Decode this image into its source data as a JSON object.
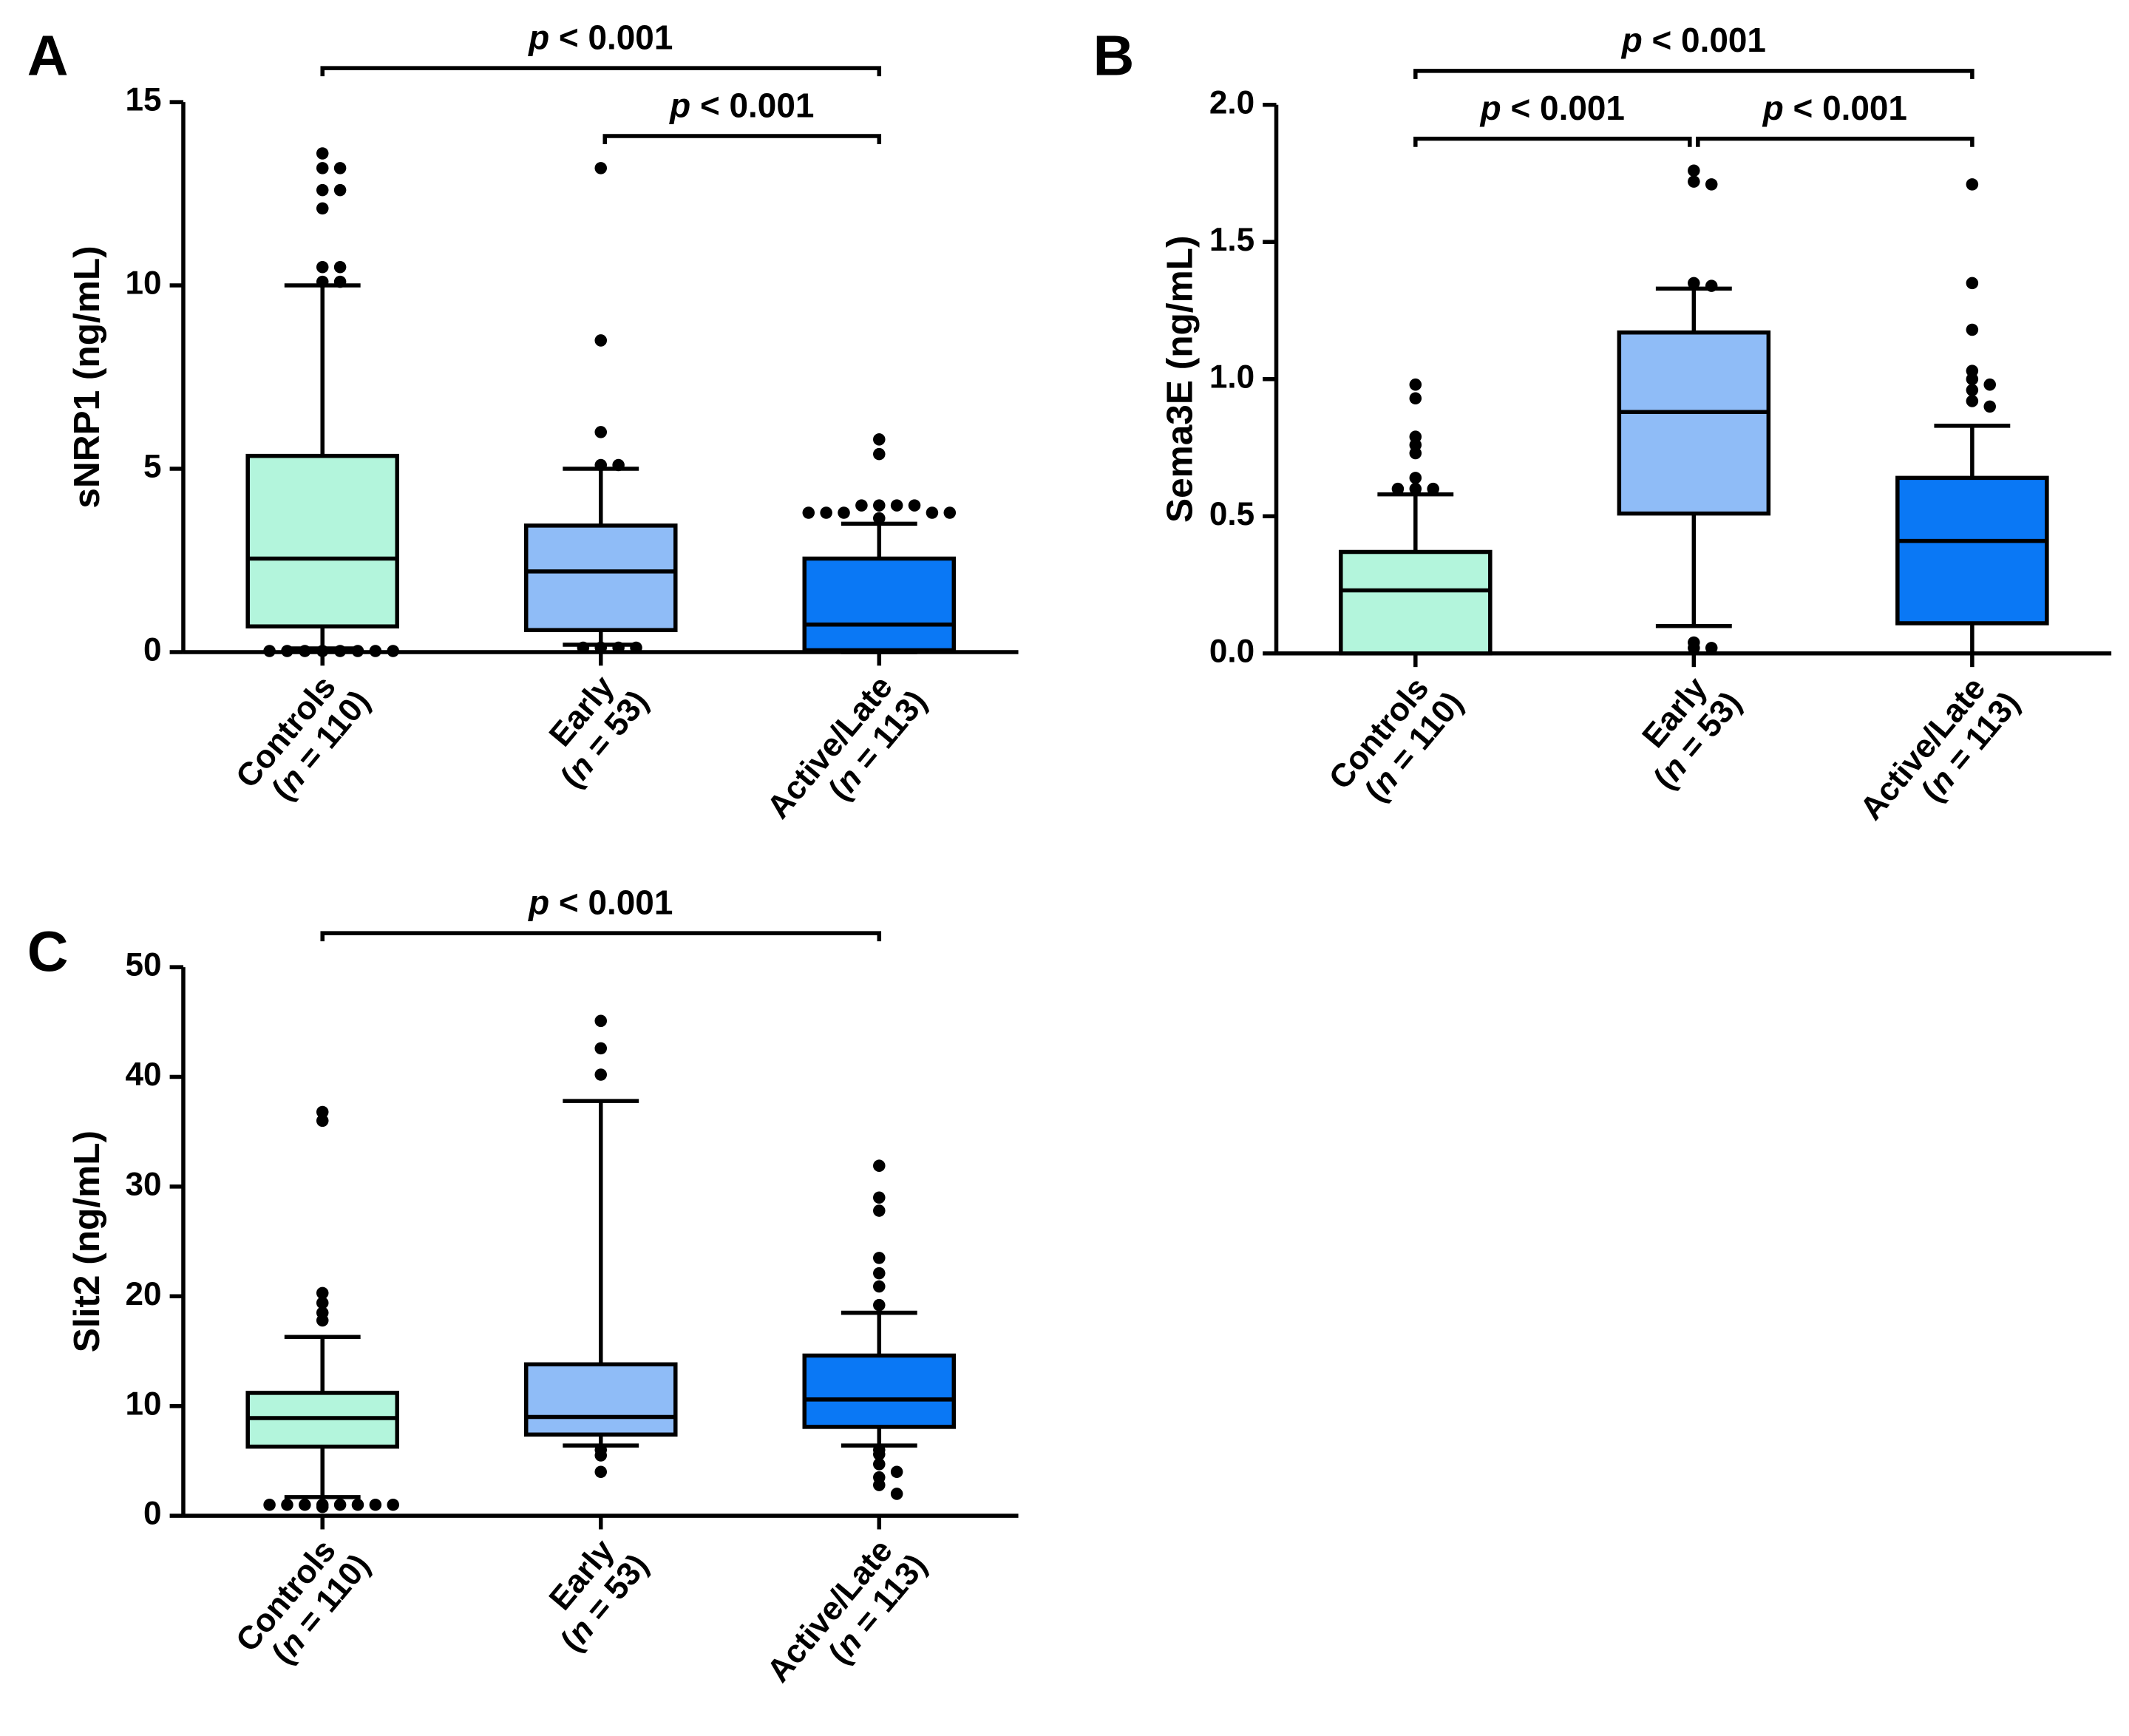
{
  "chart_data": [
    {
      "type": "box",
      "panel": "A",
      "ylabel": "sNRP1 (ng/mL)",
      "categories": [
        "Controls",
        "Early",
        "Active/Late"
      ],
      "category_counts": [
        "(n = 110)",
        "(n = 53)",
        "(n = 113)"
      ],
      "ylim": [
        0,
        15
      ],
      "yticks": [
        0,
        5,
        10,
        15
      ],
      "boxes": [
        {
          "color": "#b3f5dc",
          "whisker_low": 0.1,
          "q1": 0.7,
          "median": 2.55,
          "q3": 5.35,
          "whisker_high": 10.0,
          "outliers": [
            13.6,
            13.2,
            13.2,
            12.6,
            12.6,
            12.1,
            10.5,
            10.5,
            10.1,
            10.1,
            0.03,
            0.03,
            0.03,
            0.03,
            0.03,
            0.03,
            0.03,
            0.03
          ]
        },
        {
          "color": "#8fbcf7",
          "whisker_low": 0.2,
          "q1": 0.6,
          "median": 2.2,
          "q3": 3.45,
          "whisker_high": 5.0,
          "outliers": [
            13.2,
            8.5,
            6.0,
            5.1,
            5.1,
            0.12,
            0.12,
            0.12,
            0.12
          ]
        },
        {
          "color": "#0a78f5",
          "whisker_low": 0.0,
          "q1": 0.05,
          "median": 0.75,
          "q3": 2.55,
          "whisker_high": 3.5,
          "outliers": [
            5.8,
            5.4,
            4.0,
            4.0,
            4.0,
            4.0,
            3.8,
            3.8,
            3.8,
            3.8,
            3.8,
            3.65
          ]
        }
      ],
      "annotations": [
        {
          "text": "p < 0.001",
          "from": 0,
          "to": 2
        },
        {
          "text": "p < 0.001",
          "from": 1,
          "to": 2
        }
      ]
    },
    {
      "type": "box",
      "panel": "B",
      "ylabel": "Sema3E (ng/mL)",
      "categories": [
        "Controls",
        "Early",
        "Active/Late"
      ],
      "category_counts": [
        "(n = 110)",
        "(n = 53)",
        "(n = 113)"
      ],
      "ylim": [
        0,
        2
      ],
      "yticks": [
        {
          "value": 0,
          "label": "0.0"
        },
        {
          "value": 0.5,
          "label": "0.5"
        },
        {
          "value": 1,
          "label": "1.0"
        },
        {
          "value": 1.5,
          "label": "1.5"
        },
        {
          "value": 2,
          "label": "2.0"
        }
      ],
      "boxes": [
        {
          "color": "#b3f5dc",
          "whisker_low": 0.0,
          "q1": 0.0,
          "median": 0.23,
          "q3": 0.37,
          "whisker_high": 0.58,
          "outliers": [
            0.98,
            0.93,
            0.79,
            0.76,
            0.73,
            0.64,
            0.6,
            0.6,
            0.6
          ]
        },
        {
          "color": "#8fbcf7",
          "whisker_low": 0.1,
          "q1": 0.51,
          "median": 0.88,
          "q3": 1.17,
          "whisker_high": 1.33,
          "outliers": [
            1.76,
            1.72,
            1.71,
            1.35,
            1.34,
            0.04,
            0.02,
            0.02
          ]
        },
        {
          "color": "#0a78f5",
          "whisker_low": 0.0,
          "q1": 0.11,
          "median": 0.41,
          "q3": 0.64,
          "whisker_high": 0.83,
          "outliers": [
            1.71,
            1.35,
            1.18,
            1.03,
            1.0,
            0.98,
            0.96,
            0.92,
            0.9
          ]
        }
      ],
      "annotations": [
        {
          "text": "p < 0.001",
          "from": 0,
          "to": 2
        },
        {
          "text": "p < 0.001",
          "from": 0,
          "to": 1
        },
        {
          "text": "p < 0.001",
          "from": 1,
          "to": 2
        }
      ]
    },
    {
      "type": "box",
      "panel": "C",
      "ylabel": "Slit2 (ng/mL)",
      "categories": [
        "Controls",
        "Early",
        "Active/Late"
      ],
      "category_counts": [
        "(n = 110)",
        "(n = 53)",
        "(n = 113)"
      ],
      "ylim": [
        0,
        50
      ],
      "yticks": [
        0,
        10,
        20,
        30,
        40,
        50
      ],
      "boxes": [
        {
          "color": "#b3f5dc",
          "whisker_low": 1.7,
          "q1": 6.3,
          "median": 8.9,
          "q3": 11.2,
          "whisker_high": 16.3,
          "outliers": [
            36.8,
            36.0,
            20.3,
            19.4,
            18.5,
            17.8,
            1.0,
            1.0,
            1.0,
            1.0,
            1.0,
            1.0,
            1.0,
            1.0,
            0.8
          ]
        },
        {
          "color": "#8fbcf7",
          "whisker_low": 6.4,
          "q1": 7.4,
          "median": 9.0,
          "q3": 13.8,
          "whisker_high": 37.8,
          "outliers": [
            45.1,
            42.6,
            40.2,
            6.0,
            5.5,
            4.0
          ]
        },
        {
          "color": "#0a78f5",
          "whisker_low": 6.4,
          "q1": 8.1,
          "median": 10.6,
          "q3": 14.6,
          "whisker_high": 18.5,
          "outliers": [
            31.9,
            29.0,
            27.8,
            23.5,
            22.1,
            20.9,
            19.2,
            6.0,
            5.6,
            4.7,
            4.0,
            3.5,
            2.8,
            2.0
          ]
        }
      ],
      "annotations": [
        {
          "text": "p < 0.001",
          "from": 0,
          "to": 2
        }
      ]
    }
  ]
}
